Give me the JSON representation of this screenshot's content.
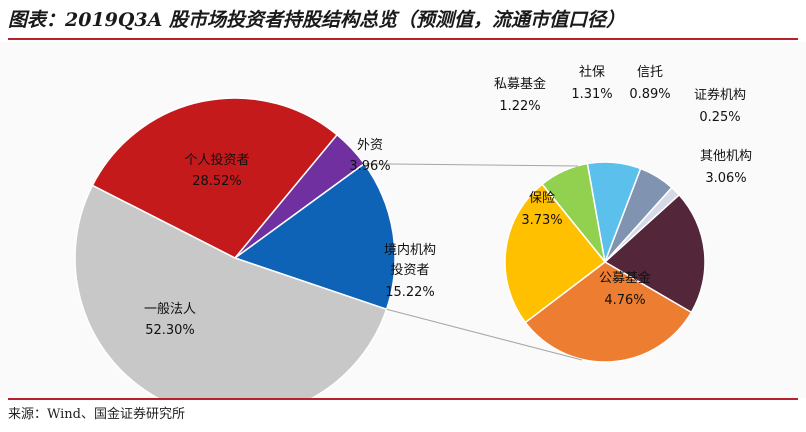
{
  "title": "图表：2019Q3A 股市场投资者持股结构总览（预测值，流通市值口径）",
  "source": "来源：Wind、国金证券研究所",
  "colors": {
    "main": [
      "#c41a1c",
      "#7030a0",
      "#0f63b6",
      "#c8c8c8"
    ],
    "detail": [
      "#92d050",
      "#5bc0eb",
      "#8093b0",
      "#d5d9e8",
      "#53263a",
      "#ed7d31",
      "#ffc000"
    ]
  },
  "chart_data": [
    {
      "type": "pie",
      "labels": [
        "个人投资者",
        "外资",
        "境内机构投资者",
        "一般法人"
      ],
      "values": [
        28.52,
        3.96,
        15.22,
        52.3
      ],
      "value_labels": [
        "28.52%",
        "3.96%",
        "15.22%",
        "52.30%"
      ]
    },
    {
      "type": "pie",
      "labels": [
        "私募基金",
        "社保",
        "信托",
        "证券机构",
        "其他机构",
        "公募基金",
        "保险"
      ],
      "values": [
        1.22,
        1.31,
        0.89,
        0.25,
        3.06,
        4.76,
        3.73
      ],
      "value_labels": [
        "1.22%",
        "1.31%",
        "0.89%",
        "0.25%",
        "3.06%",
        "4.76%",
        "3.73%"
      ]
    }
  ]
}
